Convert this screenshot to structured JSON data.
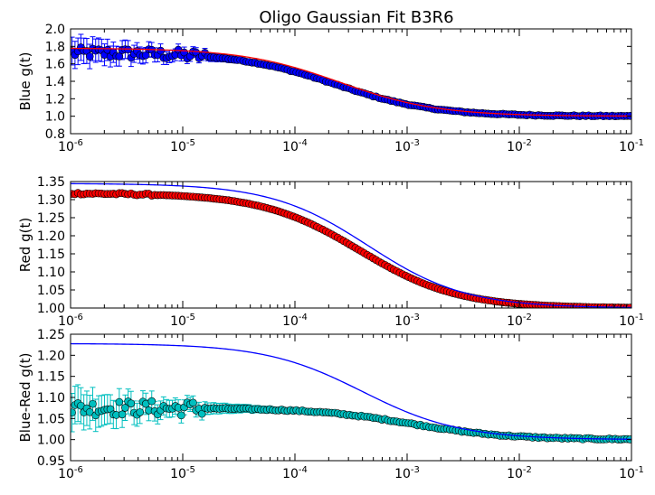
{
  "title": "Oligo Gaussian Fit B3R6",
  "chart_data": [
    {
      "type": "scatter",
      "xscale": "log",
      "xlim": [
        1e-06,
        0.1
      ],
      "ylim": [
        0.8,
        2.0
      ],
      "ylabel": "Blue g(t)",
      "yticks": [
        "0.8",
        "1.0",
        "1.2",
        "1.4",
        "1.6",
        "1.8",
        "2.0"
      ],
      "xticks": [
        {
          "base": "10",
          "exp": "-6"
        },
        {
          "base": "10",
          "exp": "-5"
        },
        {
          "base": "10",
          "exp": "-4"
        },
        {
          "base": "10",
          "exp": "-3"
        },
        {
          "base": "10",
          "exp": "-2"
        },
        {
          "base": "10",
          "exp": "-1"
        }
      ],
      "colors": {
        "points": "#0000ff",
        "errorbars": "#0000ff",
        "fit": "#ff0000"
      },
      "data_curve": {
        "g0": 1.73,
        "ginf": 1.0,
        "tau": 0.00023,
        "ripple_until": 4e-06
      },
      "fit_curve": {
        "g0": 1.78,
        "ginf": 1.0,
        "tau": 0.00025
      },
      "error_bar_max": 0.14
    },
    {
      "type": "scatter",
      "xscale": "log",
      "xlim": [
        1e-06,
        0.1
      ],
      "ylim": [
        1.0,
        1.35
      ],
      "ylabel": "Red g(t)",
      "yticks": [
        "1.00",
        "1.05",
        "1.10",
        "1.15",
        "1.20",
        "1.25",
        "1.30",
        "1.35"
      ],
      "xticks": [
        {
          "base": "10",
          "exp": "-6"
        },
        {
          "base": "10",
          "exp": "-5"
        },
        {
          "base": "10",
          "exp": "-4"
        },
        {
          "base": "10",
          "exp": "-3"
        },
        {
          "base": "10",
          "exp": "-2"
        },
        {
          "base": "10",
          "exp": "-1"
        }
      ],
      "colors": {
        "points": "#ff0000",
        "errorbars": "#ff0000",
        "fit": "#0000ff"
      },
      "data_curve": {
        "g0": 1.318,
        "ginf": 1.0,
        "tau": 0.00038,
        "ripple_until": 1.5e-06
      },
      "fit_curve": {
        "g0": 1.345,
        "ginf": 1.0,
        "tau": 0.00045
      },
      "error_bar_max": 0.006
    },
    {
      "type": "scatter",
      "xscale": "log",
      "xlim": [
        1e-06,
        0.1
      ],
      "ylim": [
        0.95,
        1.25
      ],
      "ylabel": "Blue-Red g(t)",
      "yticks": [
        "0.95",
        "1.00",
        "1.05",
        "1.10",
        "1.15",
        "1.20",
        "1.25"
      ],
      "xticks": [
        {
          "base": "10",
          "exp": "-6"
        },
        {
          "base": "10",
          "exp": "-5"
        },
        {
          "base": "10",
          "exp": "-4"
        },
        {
          "base": "10",
          "exp": "-3"
        },
        {
          "base": "10",
          "exp": "-2"
        },
        {
          "base": "10",
          "exp": "-1"
        }
      ],
      "colors": {
        "points": "#00bfbf",
        "errorbars": "#00bfbf",
        "fit": "#0000ff"
      },
      "data_curve": {
        "g0": 1.075,
        "ginf": 1.0,
        "tau": 0.0011,
        "ripple_until": 4e-06
      },
      "fit_curve": {
        "g0": 1.228,
        "ginf": 1.0,
        "tau": 0.0004
      },
      "error_bar_max": 0.04
    }
  ]
}
